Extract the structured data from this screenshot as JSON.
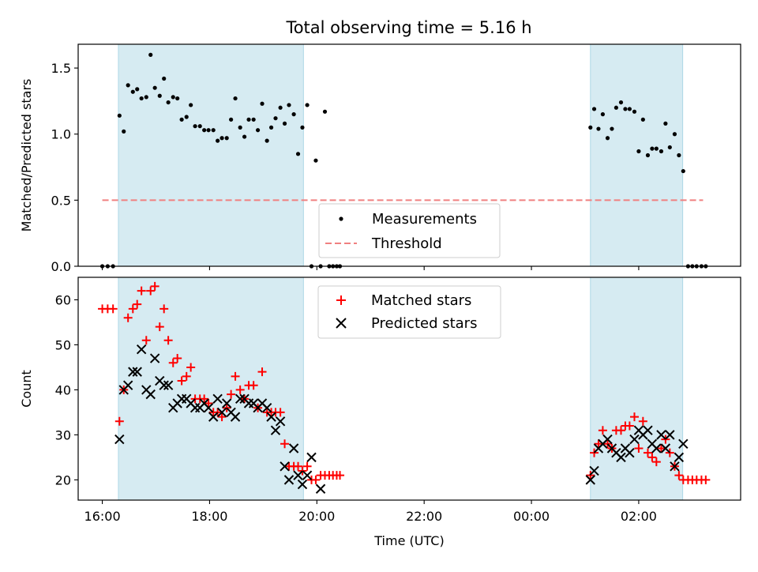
{
  "figure": {
    "title": "Total observing time = 5.16 h"
  },
  "chart_data": [
    {
      "type": "scatter",
      "panel": "top",
      "ylabel": "Matched/Predicted stars",
      "xlabel": "",
      "xlim_hours": [
        15.55,
        27.9
      ],
      "ylim": [
        0,
        1.68
      ],
      "yticks": [
        0.0,
        0.5,
        1.0,
        1.5
      ],
      "ytick_labels": [
        "0.0",
        "0.5",
        "1.0",
        "1.5"
      ],
      "shaded_intervals_hours": [
        [
          16.3,
          19.75
        ],
        [
          25.1,
          26.82
        ]
      ],
      "shade_color": "#add8e6",
      "legend": {
        "position": "bottom-center",
        "entries": [
          "Measurements",
          "Threshold"
        ]
      },
      "threshold": {
        "name": "Threshold",
        "value": 0.5,
        "x_range_hours": [
          16.0,
          27.2
        ],
        "color": "#f08080"
      },
      "series": [
        {
          "name": "Measurements",
          "marker": "dot",
          "color": "#000000",
          "points": [
            [
              16.0,
              0
            ],
            [
              16.1,
              0
            ],
            [
              16.2,
              0
            ],
            [
              16.32,
              1.14
            ],
            [
              16.4,
              1.02
            ],
            [
              16.48,
              1.37
            ],
            [
              16.57,
              1.32
            ],
            [
              16.65,
              1.34
            ],
            [
              16.73,
              1.27
            ],
            [
              16.82,
              1.28
            ],
            [
              16.9,
              1.6
            ],
            [
              16.98,
              1.35
            ],
            [
              17.07,
              1.29
            ],
            [
              17.15,
              1.42
            ],
            [
              17.23,
              1.24
            ],
            [
              17.32,
              1.28
            ],
            [
              17.4,
              1.27
            ],
            [
              17.48,
              1.11
            ],
            [
              17.57,
              1.13
            ],
            [
              17.65,
              1.22
            ],
            [
              17.73,
              1.06
            ],
            [
              17.82,
              1.06
            ],
            [
              17.9,
              1.03
            ],
            [
              17.98,
              1.03
            ],
            [
              18.07,
              1.03
            ],
            [
              18.15,
              0.95
            ],
            [
              18.23,
              0.97
            ],
            [
              18.32,
              0.97
            ],
            [
              18.4,
              1.11
            ],
            [
              18.48,
              1.27
            ],
            [
              18.57,
              1.05
            ],
            [
              18.65,
              0.98
            ],
            [
              18.73,
              1.11
            ],
            [
              18.82,
              1.11
            ],
            [
              18.9,
              1.03
            ],
            [
              18.98,
              1.23
            ],
            [
              19.07,
              0.95
            ],
            [
              19.15,
              1.05
            ],
            [
              19.23,
              1.12
            ],
            [
              19.32,
              1.2
            ],
            [
              19.4,
              1.08
            ],
            [
              19.48,
              1.22
            ],
            [
              19.57,
              1.15
            ],
            [
              19.65,
              0.85
            ],
            [
              19.73,
              1.05
            ],
            [
              19.82,
              1.22
            ],
            [
              19.9,
              0
            ],
            [
              19.98,
              0.8
            ],
            [
              20.07,
              0
            ],
            [
              20.15,
              1.17
            ],
            [
              20.23,
              0
            ],
            [
              20.3,
              0
            ],
            [
              20.37,
              0
            ],
            [
              20.43,
              0
            ],
            [
              25.1,
              1.05
            ],
            [
              25.17,
              1.19
            ],
            [
              25.25,
              1.04
            ],
            [
              25.33,
              1.15
            ],
            [
              25.42,
              0.97
            ],
            [
              25.5,
              1.04
            ],
            [
              25.58,
              1.2
            ],
            [
              25.67,
              1.24
            ],
            [
              25.75,
              1.19
            ],
            [
              25.83,
              1.19
            ],
            [
              25.92,
              1.17
            ],
            [
              26.0,
              0.87
            ],
            [
              26.08,
              1.11
            ],
            [
              26.17,
              0.84
            ],
            [
              26.25,
              0.89
            ],
            [
              26.33,
              0.89
            ],
            [
              26.42,
              0.87
            ],
            [
              26.5,
              1.08
            ],
            [
              26.58,
              0.9
            ],
            [
              26.67,
              1.0
            ],
            [
              26.75,
              0.84
            ],
            [
              26.83,
              0.72
            ],
            [
              26.92,
              0
            ],
            [
              27.0,
              0
            ],
            [
              27.08,
              0
            ],
            [
              27.17,
              0
            ],
            [
              27.25,
              0
            ]
          ]
        }
      ]
    },
    {
      "type": "scatter",
      "panel": "bottom",
      "ylabel": "Count",
      "xlabel": "Time (UTC)",
      "xlim_hours": [
        15.55,
        27.9
      ],
      "ylim": [
        15.5,
        65
      ],
      "yticks": [
        20,
        30,
        40,
        50,
        60
      ],
      "ytick_labels": [
        "20",
        "30",
        "40",
        "50",
        "60"
      ],
      "xticks_hours": [
        16,
        18,
        20,
        22,
        24,
        26
      ],
      "xtick_labels": [
        "16:00",
        "18:00",
        "20:00",
        "22:00",
        "00:00",
        "02:00"
      ],
      "shaded_intervals_hours": [
        [
          16.3,
          19.75
        ],
        [
          25.1,
          26.82
        ]
      ],
      "shade_color": "#add8e6",
      "legend": {
        "position": "top-center",
        "entries": [
          "Matched stars",
          "Predicted stars"
        ]
      },
      "series": [
        {
          "name": "Matched stars",
          "marker": "plus",
          "color": "#ff0000",
          "points": [
            [
              16.0,
              58
            ],
            [
              16.1,
              58
            ],
            [
              16.2,
              58
            ],
            [
              16.32,
              33
            ],
            [
              16.4,
              40
            ],
            [
              16.48,
              56
            ],
            [
              16.57,
              58
            ],
            [
              16.65,
              59
            ],
            [
              16.73,
              62
            ],
            [
              16.82,
              51
            ],
            [
              16.9,
              62
            ],
            [
              16.98,
              63
            ],
            [
              17.07,
              54
            ],
            [
              17.15,
              58
            ],
            [
              17.23,
              51
            ],
            [
              17.32,
              46
            ],
            [
              17.4,
              47
            ],
            [
              17.48,
              42
            ],
            [
              17.57,
              43
            ],
            [
              17.65,
              45
            ],
            [
              17.73,
              38
            ],
            [
              17.82,
              38
            ],
            [
              17.9,
              38
            ],
            [
              17.98,
              37
            ],
            [
              18.07,
              35
            ],
            [
              18.15,
              35
            ],
            [
              18.23,
              34
            ],
            [
              18.32,
              36
            ],
            [
              18.4,
              39
            ],
            [
              18.48,
              43
            ],
            [
              18.57,
              40
            ],
            [
              18.65,
              38
            ],
            [
              18.73,
              41
            ],
            [
              18.82,
              41
            ],
            [
              18.9,
              36
            ],
            [
              18.98,
              44
            ],
            [
              19.07,
              35
            ],
            [
              19.15,
              35
            ],
            [
              19.23,
              35
            ],
            [
              19.32,
              35
            ],
            [
              19.4,
              28
            ],
            [
              19.48,
              23
            ],
            [
              19.57,
              23
            ],
            [
              19.65,
              23
            ],
            [
              19.73,
              22
            ],
            [
              19.82,
              23
            ],
            [
              19.9,
              20
            ],
            [
              19.98,
              20
            ],
            [
              20.07,
              21
            ],
            [
              20.15,
              21
            ],
            [
              20.23,
              21
            ],
            [
              20.3,
              21
            ],
            [
              20.37,
              21
            ],
            [
              20.43,
              21
            ],
            [
              25.1,
              21
            ],
            [
              25.17,
              26
            ],
            [
              25.25,
              28
            ],
            [
              25.33,
              31
            ],
            [
              25.42,
              28
            ],
            [
              25.5,
              27
            ],
            [
              25.58,
              31
            ],
            [
              25.67,
              31
            ],
            [
              25.75,
              32
            ],
            [
              25.83,
              32
            ],
            [
              25.92,
              34
            ],
            [
              26.0,
              27
            ],
            [
              26.08,
              33
            ],
            [
              26.17,
              26
            ],
            [
              26.25,
              25
            ],
            [
              26.33,
              24
            ],
            [
              26.42,
              27
            ],
            [
              26.5,
              29
            ],
            [
              26.58,
              26
            ],
            [
              26.67,
              23
            ],
            [
              26.75,
              21
            ],
            [
              26.83,
              20
            ],
            [
              26.92,
              20
            ],
            [
              27.0,
              20
            ],
            [
              27.08,
              20
            ],
            [
              27.17,
              20
            ],
            [
              27.25,
              20
            ]
          ]
        },
        {
          "name": "Predicted stars",
          "marker": "x",
          "color": "#000000",
          "points": [
            [
              16.32,
              29
            ],
            [
              16.4,
              40
            ],
            [
              16.48,
              41
            ],
            [
              16.57,
              44
            ],
            [
              16.65,
              44
            ],
            [
              16.73,
              49
            ],
            [
              16.82,
              40
            ],
            [
              16.9,
              39
            ],
            [
              16.98,
              47
            ],
            [
              17.07,
              42
            ],
            [
              17.15,
              41
            ],
            [
              17.23,
              41
            ],
            [
              17.32,
              36
            ],
            [
              17.4,
              37
            ],
            [
              17.48,
              38
            ],
            [
              17.57,
              38
            ],
            [
              17.65,
              37
            ],
            [
              17.73,
              36
            ],
            [
              17.82,
              36
            ],
            [
              17.9,
              37
            ],
            [
              17.98,
              36
            ],
            [
              18.07,
              34
            ],
            [
              18.15,
              38
            ],
            [
              18.23,
              35
            ],
            [
              18.32,
              37
            ],
            [
              18.4,
              35
            ],
            [
              18.48,
              34
            ],
            [
              18.57,
              38
            ],
            [
              18.65,
              38
            ],
            [
              18.73,
              37
            ],
            [
              18.82,
              37
            ],
            [
              18.9,
              36
            ],
            [
              18.98,
              37
            ],
            [
              19.07,
              36
            ],
            [
              19.15,
              34
            ],
            [
              19.23,
              31
            ],
            [
              19.32,
              33
            ],
            [
              19.4,
              23
            ],
            [
              19.48,
              20
            ],
            [
              19.57,
              27
            ],
            [
              19.65,
              21
            ],
            [
              19.73,
              19
            ],
            [
              19.82,
              21
            ],
            [
              19.9,
              25
            ],
            [
              20.07,
              18
            ],
            [
              25.1,
              20
            ],
            [
              25.17,
              22
            ],
            [
              25.25,
              27
            ],
            [
              25.33,
              28
            ],
            [
              25.42,
              29
            ],
            [
              25.5,
              27
            ],
            [
              25.58,
              26
            ],
            [
              25.67,
              25
            ],
            [
              25.75,
              27
            ],
            [
              25.83,
              26
            ],
            [
              25.92,
              29
            ],
            [
              26.0,
              31
            ],
            [
              26.08,
              30
            ],
            [
              26.17,
              31
            ],
            [
              26.25,
              28
            ],
            [
              26.33,
              27
            ],
            [
              26.42,
              30
            ],
            [
              26.5,
              27
            ],
            [
              26.58,
              30
            ],
            [
              26.67,
              23
            ],
            [
              26.75,
              25
            ],
            [
              26.83,
              28
            ]
          ]
        }
      ]
    }
  ]
}
